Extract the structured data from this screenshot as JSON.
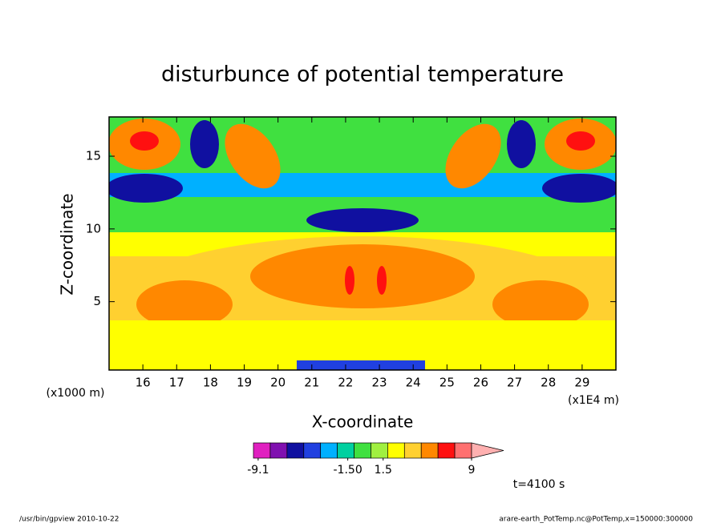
{
  "chart_data": {
    "type": "contour",
    "title": "disturbunce of potential temperature",
    "x_label": "X-coordinate",
    "y_label": "Z-coordinate",
    "x_unit": "(x1E4 m)",
    "y_unit": "(x1000 m)",
    "xlim": [
      15,
      30
    ],
    "xticks": [
      16,
      17,
      18,
      19,
      20,
      21,
      22,
      23,
      24,
      25,
      26,
      27,
      28,
      29
    ],
    "ylim": [
      0.3,
      17.7
    ],
    "yticks": [
      5,
      10,
      15
    ],
    "colorbar": {
      "lim": [
        -9.5,
        9
      ],
      "colors": [
        "#e020c0",
        "#8010b0",
        "#1010a0",
        "#2040e0",
        "#00b0ff",
        "#00d0a0",
        "#40e040",
        "#a0f040",
        "#ffff00",
        "#ffd030",
        "#ff8800",
        "#ff1010",
        "#ff7070",
        "#ffb0b0"
      ],
      "ticks": [
        -9.1,
        {
          "value": -1.5,
          "label": "-1.50"
        },
        1.5,
        9
      ]
    },
    "time_label": "t=4100 s",
    "footer_left": "/usr/bin/gpview  2010-10-22",
    "footer_right": "arare-earth_PotTemp.nc@PotTemp,x=150000:300000"
  }
}
